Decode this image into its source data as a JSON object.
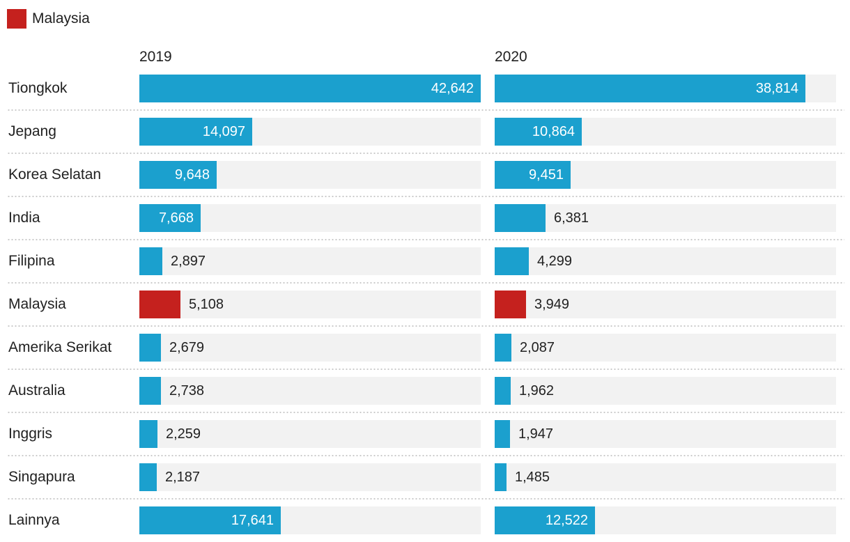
{
  "legend": {
    "label": "Malaysia"
  },
  "columns": [
    {
      "header": "2019"
    },
    {
      "header": "2020"
    }
  ],
  "colors": {
    "bar": "#1BA0CE",
    "highlight": "#C5211E",
    "track": "#F2F2F2",
    "text": "#212121",
    "value_inside_text": "#FFFFFF",
    "separator": "#C9C9C9"
  },
  "chart_data": {
    "type": "bar",
    "orientation": "horizontal",
    "title": "",
    "categories": [
      "Tiongkok",
      "Jepang",
      "Korea Selatan",
      "India",
      "Filipina",
      "Malaysia",
      "Amerika Serikat",
      "Australia",
      "Inggris",
      "Singapura",
      "Lainnya"
    ],
    "series": [
      {
        "name": "2019",
        "values": [
          42642,
          14097,
          9648,
          7668,
          2897,
          5108,
          2679,
          2738,
          2259,
          2187,
          17641
        ]
      },
      {
        "name": "2020",
        "values": [
          38814,
          10864,
          9451,
          6381,
          4299,
          3949,
          2087,
          1962,
          1947,
          1485,
          12522
        ]
      }
    ],
    "xlim": [
      0,
      42642
    ],
    "highlight_category": "Malaysia",
    "legend_entries": [
      "Malaysia"
    ],
    "grid": false,
    "legend_position": "top-left",
    "value_label_format": "thousands-separated"
  }
}
